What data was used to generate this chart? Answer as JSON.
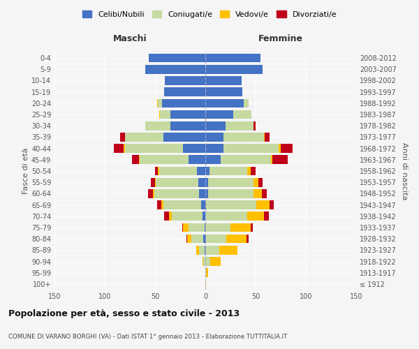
{
  "age_groups": [
    "100+",
    "95-99",
    "90-94",
    "85-89",
    "80-84",
    "75-79",
    "70-74",
    "65-69",
    "60-64",
    "55-59",
    "50-54",
    "45-49",
    "40-44",
    "35-39",
    "30-34",
    "25-29",
    "20-24",
    "15-19",
    "10-14",
    "5-9",
    "0-4"
  ],
  "birth_years": [
    "≤ 1912",
    "1913-1917",
    "1918-1922",
    "1923-1927",
    "1928-1932",
    "1933-1937",
    "1938-1942",
    "1943-1947",
    "1948-1952",
    "1953-1957",
    "1958-1962",
    "1963-1967",
    "1968-1972",
    "1973-1977",
    "1978-1982",
    "1983-1987",
    "1988-1992",
    "1993-1997",
    "1998-2002",
    "2003-2007",
    "2008-2012"
  ],
  "male_celibi": [
    0,
    0,
    0,
    1,
    2,
    1,
    3,
    4,
    6,
    7,
    8,
    17,
    22,
    42,
    35,
    35,
    43,
    41,
    40,
    60,
    56
  ],
  "male_coniugati": [
    0,
    0,
    2,
    5,
    12,
    16,
    30,
    38,
    45,
    42,
    38,
    48,
    58,
    38,
    25,
    10,
    4,
    0,
    0,
    0,
    0
  ],
  "male_vedovi": [
    0,
    0,
    1,
    3,
    4,
    5,
    3,
    2,
    1,
    1,
    1,
    1,
    1,
    0,
    0,
    1,
    1,
    0,
    0,
    0,
    0
  ],
  "male_divorziati": [
    0,
    0,
    0,
    0,
    1,
    1,
    5,
    4,
    5,
    4,
    3,
    7,
    10,
    5,
    0,
    0,
    0,
    0,
    0,
    0,
    0
  ],
  "female_celibi": [
    0,
    0,
    0,
    0,
    1,
    0,
    0,
    1,
    3,
    3,
    4,
    15,
    18,
    18,
    20,
    28,
    38,
    37,
    36,
    57,
    55
  ],
  "female_coniugati": [
    0,
    1,
    5,
    14,
    20,
    25,
    42,
    50,
    45,
    45,
    38,
    50,
    55,
    40,
    28,
    18,
    5,
    0,
    0,
    0,
    0
  ],
  "female_vedovi": [
    1,
    2,
    10,
    18,
    20,
    20,
    16,
    13,
    8,
    5,
    3,
    2,
    2,
    1,
    0,
    0,
    0,
    0,
    0,
    0,
    0
  ],
  "female_divorziati": [
    0,
    0,
    0,
    0,
    2,
    2,
    5,
    4,
    5,
    4,
    5,
    15,
    12,
    5,
    2,
    0,
    0,
    0,
    0,
    0,
    0
  ],
  "colors": {
    "celibi": "#4472c4",
    "coniugati": "#c5d9a0",
    "vedovi": "#ffc000",
    "divorziati": "#c0001a"
  },
  "title": "Popolazione per età, sesso e stato civile - 2013",
  "subtitle": "COMUNE DI VARANO BORGHI (VA) - Dati ISTAT 1° gennaio 2013 - Elaborazione TUTTITALIA.IT",
  "xlabel_left": "Maschi",
  "xlabel_right": "Femmine",
  "ylabel_left": "Fasce di età",
  "ylabel_right": "Anni di nascita",
  "xlim": 150,
  "background_color": "#f5f5f5",
  "legend_labels": [
    "Celibi/Nubili",
    "Coniugati/e",
    "Vedovi/e",
    "Divorziati/e"
  ]
}
